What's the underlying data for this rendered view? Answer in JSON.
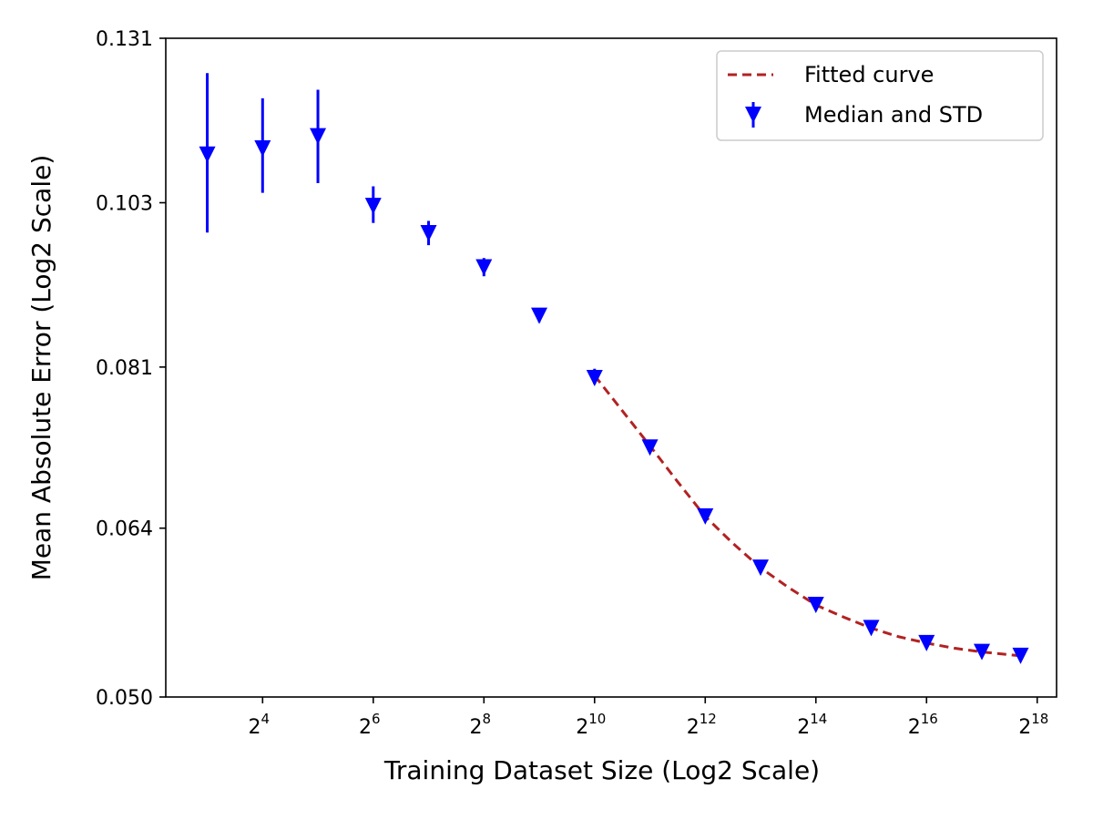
{
  "chart_data": {
    "type": "scatter",
    "title": "",
    "xlabel": "Training Dataset Size (Log2 Scale)",
    "ylabel": "Mean Absolute Error (Log2 Scale)",
    "x_scale": "log2",
    "y_scale": "log2",
    "xlim_log2": [
      2.25,
      18.35
    ],
    "ylim": [
      0.05,
      0.131
    ],
    "x_ticks": [
      {
        "exp": 4,
        "base": "2",
        "sup": "4"
      },
      {
        "exp": 6,
        "base": "2",
        "sup": "6"
      },
      {
        "exp": 8,
        "base": "2",
        "sup": "8"
      },
      {
        "exp": 10,
        "base": "2",
        "sup": "10"
      },
      {
        "exp": 12,
        "base": "2",
        "sup": "12"
      },
      {
        "exp": 14,
        "base": "2",
        "sup": "14"
      },
      {
        "exp": 16,
        "base": "2",
        "sup": "16"
      },
      {
        "exp": 18,
        "base": "2",
        "sup": "18"
      }
    ],
    "y_ticks": [
      {
        "value": 0.05,
        "label": "0.050"
      },
      {
        "value": 0.064,
        "label": "0.064"
      },
      {
        "value": 0.081,
        "label": "0.081"
      },
      {
        "value": 0.103,
        "label": "0.103"
      },
      {
        "value": 0.131,
        "label": "0.131"
      }
    ],
    "legend": {
      "position": "top-right",
      "entries": [
        "Fitted curve",
        "Median and STD"
      ]
    },
    "series": [
      {
        "name": "Median and STD",
        "kind": "errorbar",
        "color": "#0000ff",
        "points": [
          {
            "x_log2": 3,
            "y": 0.1105,
            "ylo": 0.0986,
            "yhi": 0.1245
          },
          {
            "x_log2": 4,
            "y": 0.1115,
            "ylo": 0.1045,
            "yhi": 0.12
          },
          {
            "x_log2": 5,
            "y": 0.1135,
            "ylo": 0.106,
            "yhi": 0.1215
          },
          {
            "x_log2": 6,
            "y": 0.1025,
            "ylo": 0.1,
            "yhi": 0.1055
          },
          {
            "x_log2": 7,
            "y": 0.0985,
            "ylo": 0.0968,
            "yhi": 0.1003
          },
          {
            "x_log2": 8,
            "y": 0.0937,
            "ylo": 0.0925,
            "yhi": 0.095
          },
          {
            "x_log2": 9,
            "y": 0.0873,
            "ylo": 0.0865,
            "yhi": 0.0882
          },
          {
            "x_log2": 10,
            "y": 0.0797,
            "ylo": 0.079,
            "yhi": 0.0808
          },
          {
            "x_log2": 11,
            "y": 0.072,
            "ylo": 0.0716,
            "yhi": 0.0725
          },
          {
            "x_log2": 12,
            "y": 0.0651,
            "ylo": 0.0648,
            "yhi": 0.0654
          },
          {
            "x_log2": 13,
            "y": 0.0604,
            "ylo": 0.0602,
            "yhi": 0.0606
          },
          {
            "x_log2": 14,
            "y": 0.0572,
            "ylo": 0.057,
            "yhi": 0.0574
          },
          {
            "x_log2": 15,
            "y": 0.0553,
            "ylo": 0.0551,
            "yhi": 0.0555
          },
          {
            "x_log2": 16,
            "y": 0.0541,
            "ylo": 0.054,
            "yhi": 0.0542
          },
          {
            "x_log2": 17,
            "y": 0.0534,
            "ylo": 0.0533,
            "yhi": 0.0535
          },
          {
            "x_log2": 17.7,
            "y": 0.0531,
            "ylo": 0.053,
            "yhi": 0.0532
          }
        ]
      },
      {
        "name": "Fitted curve",
        "kind": "line",
        "style": "dashed",
        "color": "#b22222",
        "points": [
          {
            "x_log2": 10,
            "y": 0.08
          },
          {
            "x_log2": 10.5,
            "y": 0.076
          },
          {
            "x_log2": 11,
            "y": 0.0722
          },
          {
            "x_log2": 11.5,
            "y": 0.0685
          },
          {
            "x_log2": 12,
            "y": 0.0651
          },
          {
            "x_log2": 12.5,
            "y": 0.0626
          },
          {
            "x_log2": 13,
            "y": 0.0604
          },
          {
            "x_log2": 13.5,
            "y": 0.0587
          },
          {
            "x_log2": 14,
            "y": 0.0572
          },
          {
            "x_log2": 14.5,
            "y": 0.0562
          },
          {
            "x_log2": 15,
            "y": 0.0553
          },
          {
            "x_log2": 15.5,
            "y": 0.0546
          },
          {
            "x_log2": 16,
            "y": 0.0541
          },
          {
            "x_log2": 16.5,
            "y": 0.0537
          },
          {
            "x_log2": 17,
            "y": 0.0534
          },
          {
            "x_log2": 17.7,
            "y": 0.0531
          }
        ]
      }
    ]
  }
}
